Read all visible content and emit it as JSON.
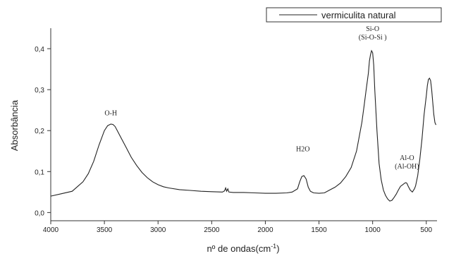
{
  "chart_data": {
    "type": "line",
    "xlabel_main": "nº de ondas(cm",
    "xlabel_sup": "-1",
    "xlabel_close": ")",
    "ylabel": "Absorbância",
    "xlim": [
      4000,
      400
    ],
    "ylim": [
      -0.02,
      0.45
    ],
    "x_ticks": [
      4000,
      3500,
      3000,
      2500,
      2000,
      1500,
      1000,
      500
    ],
    "x_tick_labels": [
      "4000",
      "3500",
      "3000",
      "2500",
      "2000",
      "1500",
      "1000",
      "500"
    ],
    "y_ticks": [
      0.0,
      0.1,
      0.2,
      0.3,
      0.4
    ],
    "y_tick_labels": [
      "0,0",
      "0,1",
      "0,2",
      "0,3",
      "0,4"
    ],
    "legend_position": "top-right",
    "series": [
      {
        "name": "vermiculita natural",
        "x": [
          4000,
          3900,
          3800,
          3700,
          3650,
          3600,
          3550,
          3500,
          3470,
          3440,
          3420,
          3400,
          3380,
          3350,
          3300,
          3250,
          3200,
          3150,
          3100,
          3050,
          3000,
          2950,
          2900,
          2800,
          2700,
          2600,
          2500,
          2400,
          2380,
          2370,
          2360,
          2350,
          2340,
          2300,
          2200,
          2100,
          2000,
          1900,
          1800,
          1750,
          1700,
          1680,
          1660,
          1640,
          1620,
          1600,
          1580,
          1550,
          1500,
          1450,
          1400,
          1350,
          1300,
          1250,
          1200,
          1150,
          1100,
          1080,
          1060,
          1040,
          1030,
          1020,
          1010,
          1000,
          990,
          980,
          960,
          940,
          920,
          900,
          880,
          860,
          840,
          820,
          800,
          780,
          760,
          740,
          720,
          700,
          690,
          680,
          670,
          650,
          630,
          610,
          600,
          580,
          560,
          540,
          520,
          500,
          490,
          480,
          470,
          460,
          450,
          440,
          430,
          420,
          410
        ],
        "values": [
          0.04,
          0.046,
          0.052,
          0.075,
          0.095,
          0.125,
          0.165,
          0.2,
          0.212,
          0.216,
          0.215,
          0.21,
          0.2,
          0.185,
          0.16,
          0.135,
          0.115,
          0.098,
          0.085,
          0.075,
          0.068,
          0.063,
          0.06,
          0.056,
          0.054,
          0.052,
          0.051,
          0.05,
          0.053,
          0.06,
          0.052,
          0.058,
          0.05,
          0.049,
          0.049,
          0.048,
          0.047,
          0.047,
          0.048,
          0.05,
          0.058,
          0.075,
          0.088,
          0.09,
          0.082,
          0.062,
          0.052,
          0.048,
          0.047,
          0.048,
          0.055,
          0.062,
          0.072,
          0.088,
          0.11,
          0.15,
          0.22,
          0.26,
          0.3,
          0.34,
          0.37,
          0.385,
          0.395,
          0.39,
          0.36,
          0.3,
          0.2,
          0.12,
          0.08,
          0.055,
          0.042,
          0.033,
          0.028,
          0.03,
          0.037,
          0.045,
          0.055,
          0.064,
          0.068,
          0.072,
          0.073,
          0.071,
          0.065,
          0.055,
          0.05,
          0.058,
          0.065,
          0.09,
          0.13,
          0.18,
          0.24,
          0.285,
          0.31,
          0.325,
          0.328,
          0.322,
          0.3,
          0.27,
          0.24,
          0.22,
          0.214
        ]
      }
    ],
    "annotations": [
      {
        "lines": [
          "O-H"
        ],
        "x": 3440,
        "y": 0.237
      },
      {
        "lines": [
          "H2O"
        ],
        "x": 1650,
        "y": 0.15
      },
      {
        "lines": [
          "Si-O",
          "(Si-O-Si )"
        ],
        "x": 1000,
        "y": 0.443
      },
      {
        "lines": [
          "Al-O",
          "(Al-OH)"
        ],
        "x": 680,
        "y": 0.128
      }
    ]
  }
}
